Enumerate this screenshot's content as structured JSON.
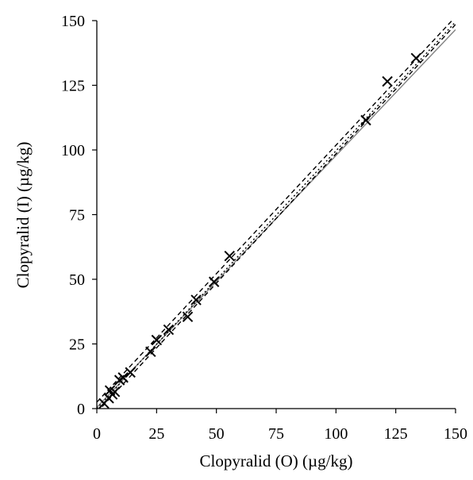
{
  "chart_data": {
    "type": "scatter",
    "title": "",
    "xlabel": "Clopyralid (O) (µg/kg)",
    "ylabel": "Clopyralid (I) (µg/kg)",
    "xlim": [
      0,
      150
    ],
    "ylim": [
      0,
      150
    ],
    "x_ticks": [
      0,
      25,
      50,
      75,
      100,
      125,
      150
    ],
    "y_ticks": [
      0,
      25,
      50,
      75,
      100,
      125,
      150
    ],
    "x_tick_labels": [
      "0",
      "25",
      "50",
      "75",
      "100",
      "125",
      "150"
    ],
    "y_tick_labels": [
      "0",
      "25",
      "50",
      "75",
      "100",
      "125",
      "150"
    ],
    "grid": false,
    "legend": "none",
    "marker": "x",
    "points": [
      {
        "x": 3,
        "y": 2
      },
      {
        "x": 5,
        "y": 4
      },
      {
        "x": 5.5,
        "y": 7
      },
      {
        "x": 6.5,
        "y": 5.5
      },
      {
        "x": 7.5,
        "y": 6.5
      },
      {
        "x": 9.5,
        "y": 11
      },
      {
        "x": 11,
        "y": 12
      },
      {
        "x": 14,
        "y": 14
      },
      {
        "x": 22.5,
        "y": 22
      },
      {
        "x": 25,
        "y": 26.5
      },
      {
        "x": 30,
        "y": 30.5
      },
      {
        "x": 38,
        "y": 35.5
      },
      {
        "x": 41.5,
        "y": 42
      },
      {
        "x": 49,
        "y": 49
      },
      {
        "x": 55.5,
        "y": 59
      },
      {
        "x": 112.5,
        "y": 111.5
      },
      {
        "x": 121.5,
        "y": 126.5
      },
      {
        "x": 133.5,
        "y": 135.5
      }
    ],
    "lines": [
      {
        "style": "solid",
        "color": "#808080",
        "x": [
          0,
          150
        ],
        "y": [
          0.5,
          146.5
        ]
      },
      {
        "style": "dashed",
        "color": "#000000",
        "x": [
          0,
          150
        ],
        "y": [
          2.5,
          151.5
        ]
      },
      {
        "style": "dashed",
        "color": "#000000",
        "x": [
          0,
          150
        ],
        "y": [
          -1.5,
          148.5
        ]
      },
      {
        "style": "dotted",
        "color": "#000000",
        "x": [
          0,
          150
        ],
        "y": [
          0,
          149.5
        ]
      }
    ]
  }
}
